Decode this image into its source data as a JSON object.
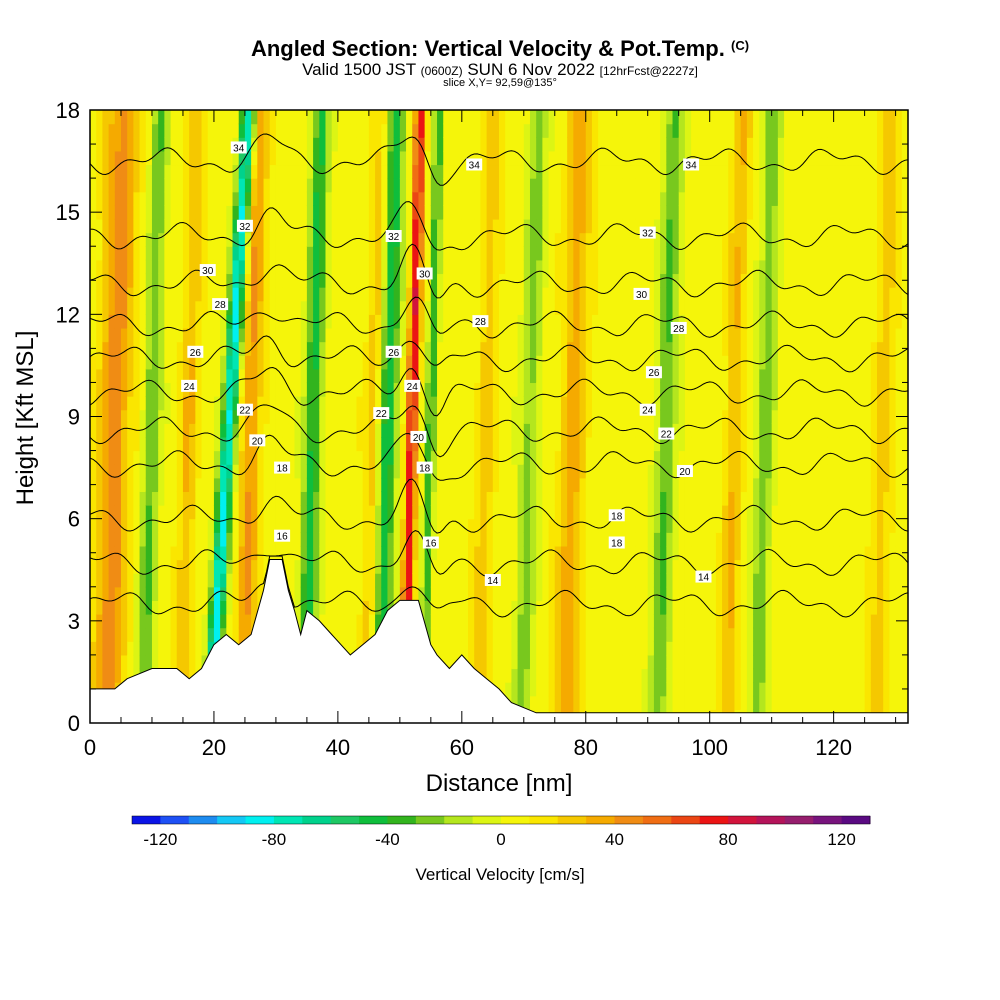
{
  "header": {
    "title": "Angled Section: Vertical Velocity & Pot.Temp.",
    "title_mark": "(C)",
    "valid_prefix": "Valid 1500 JST",
    "valid_z": "(0600Z)",
    "valid_date": "SUN 6 Nov 2022",
    "valid_fcst": "[12hrFcst@2227z]",
    "slice": "slice X,Y= 92,59@135°"
  },
  "chart_data": {
    "type": "heatmap",
    "xlabel": "Distance [nm]",
    "ylabel": "Height [Kft MSL]",
    "xlim": [
      0,
      132
    ],
    "ylim": [
      0,
      18
    ],
    "x_ticks": [
      0,
      20,
      40,
      60,
      80,
      100,
      120
    ],
    "y_ticks": [
      0,
      3,
      6,
      9,
      12,
      15,
      18
    ],
    "colorbar": {
      "label": "Vertical Velocity [cm/s]",
      "ticks": [
        -120,
        -80,
        -40,
        0,
        40,
        80,
        120
      ],
      "range": [
        -130,
        130
      ],
      "colors": [
        "#0a14e6",
        "#1e50f5",
        "#1e8cf0",
        "#14c8f5",
        "#00f0f0",
        "#00e6b4",
        "#00d28c",
        "#1ec864",
        "#0fbe3c",
        "#32b41e",
        "#78c81e",
        "#b4e61e",
        "#dcf514",
        "#f5f50a",
        "#fae600",
        "#f5c800",
        "#f5aa00",
        "#f08c14",
        "#f06e14",
        "#eb4614",
        "#eb1414",
        "#d2143c",
        "#b4145a",
        "#961e6e",
        "#78147d",
        "#5a0a82"
      ]
    },
    "terrain_profile": [
      [
        0,
        1.0
      ],
      [
        4,
        1.0
      ],
      [
        6,
        1.3
      ],
      [
        10,
        1.6
      ],
      [
        14,
        1.6
      ],
      [
        16,
        1.3
      ],
      [
        18,
        1.6
      ],
      [
        20,
        2.3
      ],
      [
        22,
        2.6
      ],
      [
        24,
        2.3
      ],
      [
        26,
        2.6
      ],
      [
        28,
        3.9
      ],
      [
        29,
        4.8
      ],
      [
        31,
        4.8
      ],
      [
        32,
        3.9
      ],
      [
        33,
        3.3
      ],
      [
        34,
        2.6
      ],
      [
        35,
        3.3
      ],
      [
        37,
        3.0
      ],
      [
        39,
        2.6
      ],
      [
        42,
        2.0
      ],
      [
        44,
        2.3
      ],
      [
        46,
        2.6
      ],
      [
        48,
        3.3
      ],
      [
        50,
        3.6
      ],
      [
        53,
        3.6
      ],
      [
        55,
        2.3
      ],
      [
        56,
        2.0
      ],
      [
        58,
        1.6
      ],
      [
        60,
        2.0
      ],
      [
        62,
        1.6
      ],
      [
        64,
        1.3
      ],
      [
        66,
        1.0
      ],
      [
        68,
        0.6
      ],
      [
        72,
        0.3
      ],
      [
        132,
        0.3
      ]
    ],
    "updraft_bands": [
      {
        "x": 4,
        "w": 2.6,
        "v": 40
      },
      {
        "x": 16,
        "w": 1.4,
        "v": 25
      },
      {
        "x": 26,
        "w": 1.6,
        "v": 35
      },
      {
        "x": 46,
        "w": 1.5,
        "v": 25
      },
      {
        "x": 52,
        "w": 0.9,
        "v": 75
      },
      {
        "x": 64,
        "w": 1.5,
        "v": 20
      },
      {
        "x": 78,
        "w": 2.0,
        "v": 30
      },
      {
        "x": 104,
        "w": 1.5,
        "v": 25
      },
      {
        "x": 128,
        "w": 1.6,
        "v": 20
      }
    ],
    "downdraft_bands": [
      {
        "x": 10,
        "w": 1.4,
        "v": -35
      },
      {
        "x": 22.5,
        "w": 1.2,
        "v": -90
      },
      {
        "x": 36,
        "w": 1.4,
        "v": -50
      },
      {
        "x": 48,
        "w": 1.6,
        "v": -55
      },
      {
        "x": 55,
        "w": 0.8,
        "v": -45
      },
      {
        "x": 71,
        "w": 1.5,
        "v": -30
      },
      {
        "x": 93,
        "w": 1.6,
        "v": -35
      },
      {
        "x": 109,
        "w": 1.5,
        "v": -30
      }
    ],
    "theta_contours": [
      {
        "value": 14,
        "base": 3.5,
        "labels": [
          [
            65,
            4.2
          ],
          [
            99,
            4.3
          ]
        ]
      },
      {
        "value": 16,
        "base": 4.7,
        "labels": [
          [
            31,
            5.5
          ],
          [
            55,
            5.3
          ]
        ]
      },
      {
        "value": 18,
        "base": 6.0,
        "labels": [
          [
            31,
            7.5
          ],
          [
            54,
            7.5
          ],
          [
            85,
            6.1
          ],
          [
            85,
            5.3
          ]
        ]
      },
      {
        "value": 20,
        "base": 7.6,
        "labels": [
          [
            27,
            8.3
          ],
          [
            53,
            8.4
          ],
          [
            96,
            7.4
          ]
        ]
      },
      {
        "value": 22,
        "base": 8.6,
        "labels": [
          [
            25,
            9.2
          ],
          [
            47,
            9.1
          ],
          [
            93,
            8.5
          ]
        ]
      },
      {
        "value": 24,
        "base": 9.7,
        "labels": [
          [
            16,
            9.9
          ],
          [
            52,
            9.9
          ],
          [
            90,
            9.2
          ]
        ]
      },
      {
        "value": 26,
        "base": 10.7,
        "labels": [
          [
            17,
            10.9
          ],
          [
            49,
            10.9
          ],
          [
            91,
            10.3
          ]
        ]
      },
      {
        "value": 28,
        "base": 11.7,
        "labels": [
          [
            21,
            12.3
          ],
          [
            63,
            11.8
          ],
          [
            95,
            11.6
          ]
        ]
      },
      {
        "value": 30,
        "base": 12.9,
        "labels": [
          [
            19,
            13.3
          ],
          [
            54,
            13.2
          ],
          [
            89,
            12.6
          ]
        ]
      },
      {
        "value": 32,
        "base": 14.3,
        "labels": [
          [
            25,
            14.6
          ],
          [
            49,
            14.3
          ],
          [
            90,
            14.4
          ]
        ]
      },
      {
        "value": 34,
        "base": 16.5,
        "labels": [
          [
            24,
            16.9
          ],
          [
            62,
            16.4
          ],
          [
            97,
            16.4
          ]
        ]
      }
    ]
  }
}
